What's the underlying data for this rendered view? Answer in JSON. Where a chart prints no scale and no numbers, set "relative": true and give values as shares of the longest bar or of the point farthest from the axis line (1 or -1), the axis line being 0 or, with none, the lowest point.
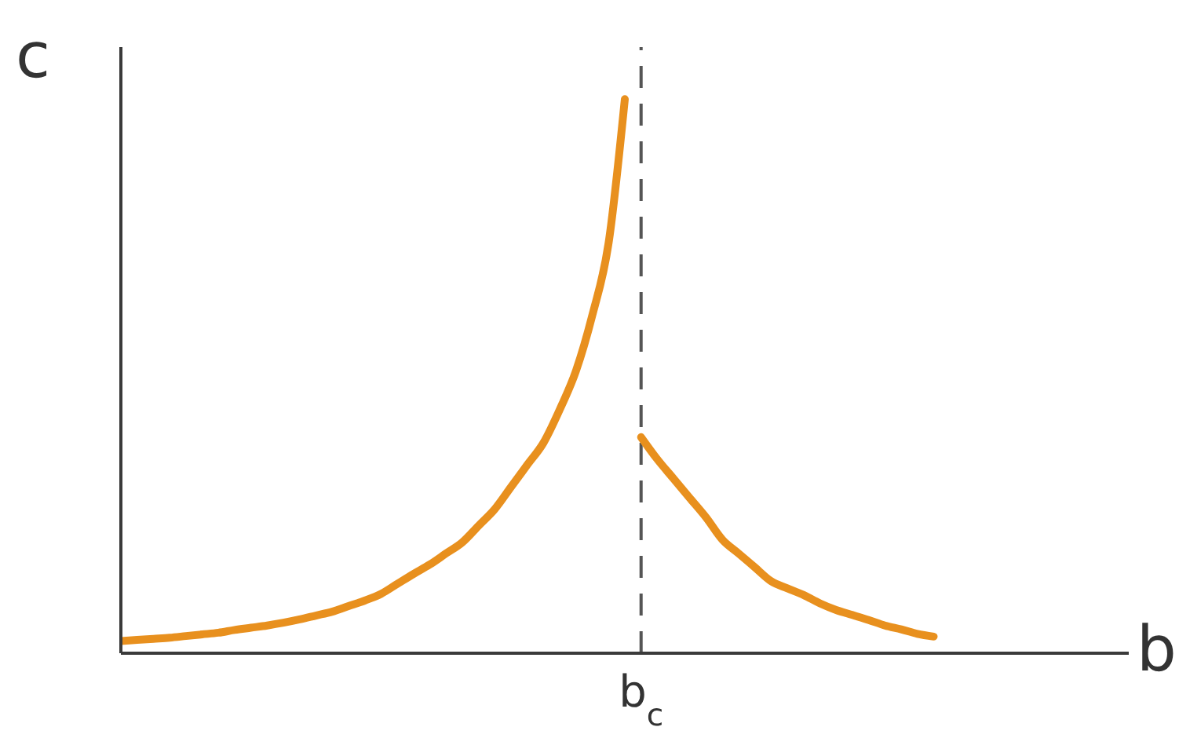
{
  "chart_data": {
    "type": "line",
    "xlabel": "b",
    "ylabel": "c",
    "relative": true,
    "categories": [
      null,
      null,
      null,
      null,
      null,
      null,
      null,
      null,
      null,
      null,
      null,
      null,
      null,
      null,
      null,
      null,
      null,
      null,
      null,
      null,
      null,
      null,
      null,
      null,
      null,
      null,
      null,
      null,
      null,
      null,
      null,
      null,
      null,
      null,
      null,
      null,
      null,
      null,
      null,
      null,
      null,
      null,
      null,
      null,
      null,
      null,
      null,
      null,
      null,
      null,
      null,
      null,
      null,
      null,
      null,
      null,
      null,
      null,
      null,
      null,
      null,
      null,
      null
    ],
    "series": [
      {
        "color": "#e8901e",
        "values": [
          0.022,
          0.024,
          0.026,
          0.028,
          0.031,
          0.034,
          0.037,
          0.042,
          0.046,
          0.05,
          0.055,
          0.061,
          0.068,
          0.075,
          0.085,
          0.095,
          0.107,
          0.125,
          0.143,
          0.16,
          0.18,
          0.2,
          0.23,
          0.26,
          0.3,
          0.34,
          0.38,
          0.44,
          0.51,
          0.61,
          0.74,
          1,
          null,
          null,
          null,
          null,
          null,
          null,
          null,
          null,
          null,
          null,
          null,
          null,
          null,
          null,
          null,
          null,
          null,
          null,
          null,
          null,
          null,
          null,
          null,
          null,
          null,
          null,
          null,
          null,
          null,
          null,
          null
        ]
      },
      {
        "color": "#e8901e",
        "values": [
          null,
          null,
          null,
          null,
          null,
          null,
          null,
          null,
          null,
          null,
          null,
          null,
          null,
          null,
          null,
          null,
          null,
          null,
          null,
          null,
          null,
          null,
          null,
          null,
          null,
          null,
          null,
          null,
          null,
          null,
          null,
          null,
          0.39,
          0.35,
          0.315,
          0.28,
          0.245,
          0.205,
          0.18,
          0.155,
          0.13,
          0.117,
          0.105,
          0.09,
          0.078,
          0.069,
          0.06,
          0.05,
          0.043,
          0.035,
          0.03,
          null,
          null,
          null,
          null,
          null,
          null,
          null,
          null,
          null,
          null,
          null,
          null
        ]
      }
    ],
    "annotations": [
      "b$_{c}$"
    ]
  }
}
